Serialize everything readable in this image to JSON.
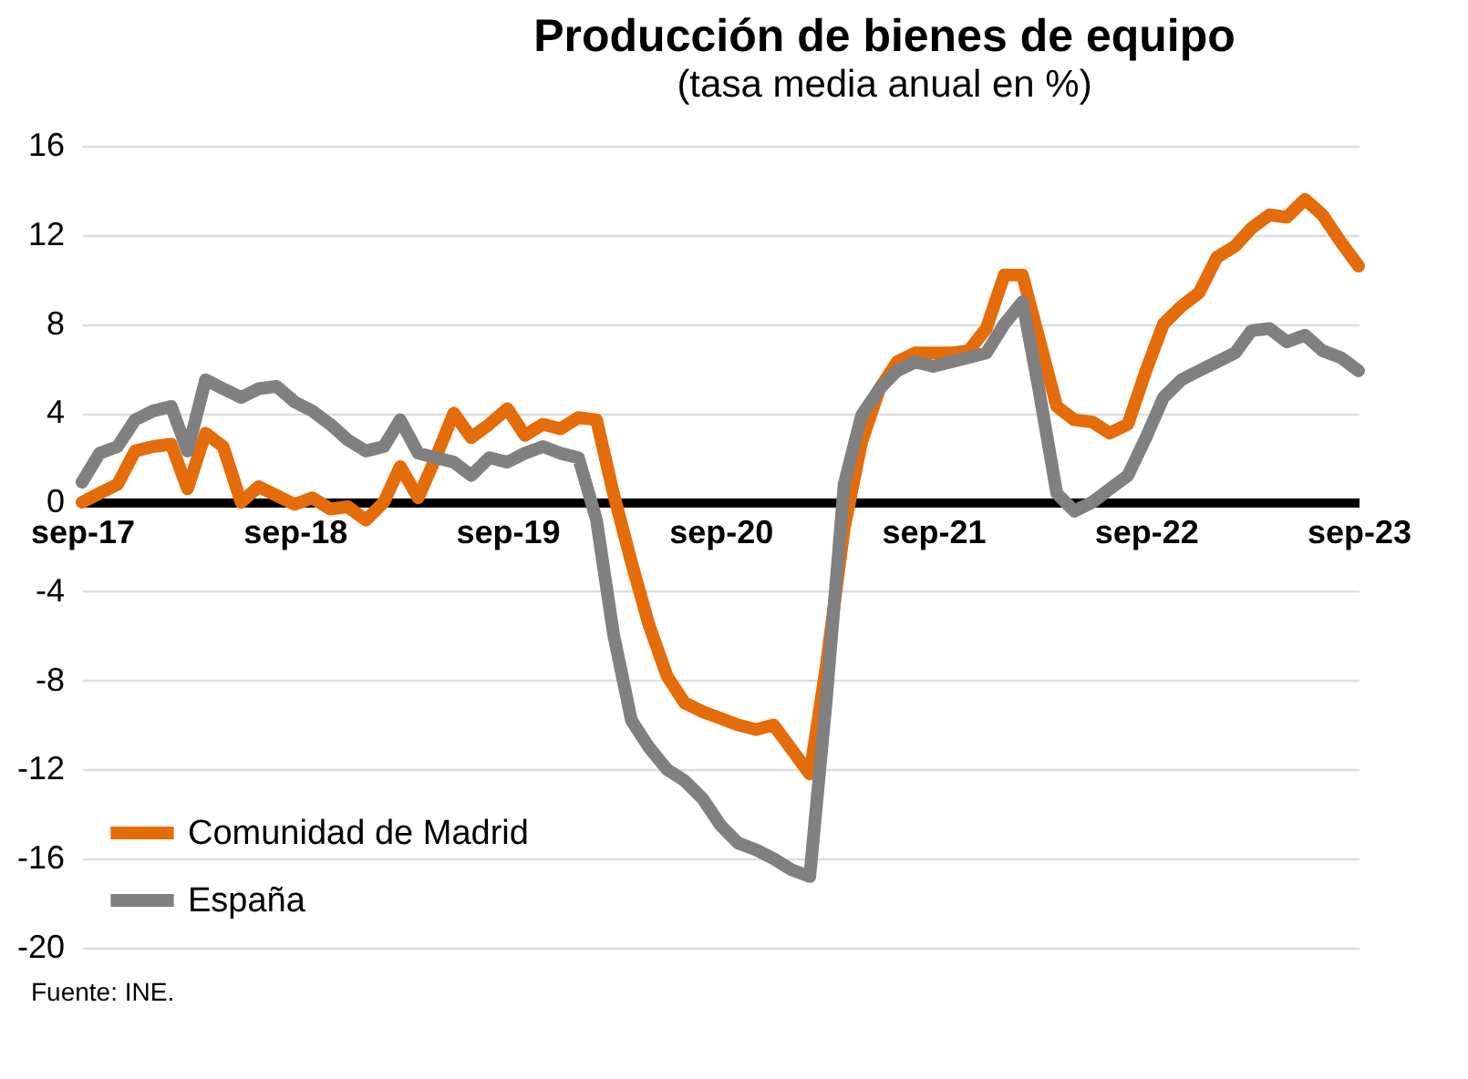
{
  "chart_data": {
    "type": "line",
    "title": "Producción de bienes de equipo",
    "subtitle": "(tasa media anual en %)",
    "x": [
      "2017-09",
      "2017-10",
      "2017-11",
      "2017-12",
      "2018-01",
      "2018-02",
      "2018-03",
      "2018-04",
      "2018-05",
      "2018-06",
      "2018-07",
      "2018-08",
      "2018-09",
      "2018-10",
      "2018-11",
      "2018-12",
      "2019-01",
      "2019-02",
      "2019-03",
      "2019-04",
      "2019-05",
      "2019-06",
      "2019-07",
      "2019-08",
      "2019-09",
      "2019-10",
      "2019-11",
      "2019-12",
      "2020-01",
      "2020-02",
      "2020-03",
      "2020-04",
      "2020-05",
      "2020-06",
      "2020-07",
      "2020-08",
      "2020-09",
      "2020-10",
      "2020-11",
      "2020-12",
      "2021-01",
      "2021-02",
      "2021-03",
      "2021-04",
      "2021-05",
      "2021-06",
      "2021-07",
      "2021-08",
      "2021-09",
      "2021-10",
      "2021-11",
      "2021-12",
      "2022-01",
      "2022-02",
      "2022-03",
      "2022-04",
      "2022-05",
      "2022-06",
      "2022-07",
      "2022-08",
      "2022-09",
      "2022-10",
      "2022-11",
      "2022-12",
      "2023-01",
      "2023-02",
      "2023-03",
      "2023-04",
      "2023-05",
      "2023-06",
      "2023-07",
      "2023-08",
      "2023-09"
    ],
    "series": [
      {
        "name": "Comunidad de Madrid",
        "color": "#e46c0a",
        "values": [
          0.0,
          0.4,
          0.8,
          2.3,
          2.5,
          2.6,
          0.6,
          3.1,
          2.5,
          0.0,
          0.7,
          0.3,
          -0.1,
          0.2,
          -0.3,
          -0.2,
          -0.8,
          0.0,
          1.6,
          0.2,
          2.0,
          4.0,
          2.9,
          3.5,
          4.2,
          3.0,
          3.5,
          3.3,
          3.8,
          3.7,
          0.4,
          -2.7,
          -5.5,
          -7.8,
          -9.0,
          -9.4,
          -9.7,
          -10.0,
          -10.2,
          -10.0,
          -11.1,
          -12.2,
          -7.4,
          -1.2,
          2.7,
          5.1,
          6.3,
          6.7,
          6.7,
          6.7,
          6.8,
          7.8,
          10.2,
          10.2,
          7.4,
          4.3,
          3.7,
          3.6,
          3.1,
          3.5,
          5.9,
          8.0,
          8.8,
          9.4,
          11.0,
          11.5,
          12.3,
          12.9,
          12.8,
          13.6,
          12.9,
          11.7,
          10.6
        ]
      },
      {
        "name": "España",
        "color": "#808080",
        "values": [
          0.9,
          2.2,
          2.5,
          3.7,
          4.1,
          4.3,
          2.3,
          5.5,
          5.1,
          4.7,
          5.1,
          5.2,
          4.5,
          4.1,
          3.5,
          2.8,
          2.3,
          2.5,
          3.7,
          2.2,
          2.0,
          1.8,
          1.2,
          2.0,
          1.8,
          2.2,
          2.5,
          2.2,
          2.0,
          -0.8,
          -5.9,
          -9.8,
          -11.0,
          -12.0,
          -12.5,
          -13.3,
          -14.5,
          -15.3,
          -15.6,
          -16.0,
          -16.5,
          -16.8,
          -9.0,
          0.8,
          3.9,
          5.1,
          5.9,
          6.3,
          6.1,
          6.3,
          6.5,
          6.7,
          8.0,
          9.0,
          5.1,
          0.4,
          -0.4,
          0.0,
          0.6,
          1.2,
          2.9,
          4.7,
          5.5,
          5.9,
          6.3,
          6.7,
          7.7,
          7.8,
          7.2,
          7.5,
          6.8,
          6.5,
          5.9
        ]
      }
    ],
    "xlim": [
      "2017-09",
      "2023-09"
    ],
    "xticks": [
      {
        "value": "2017-09",
        "label": "sep-17"
      },
      {
        "value": "2018-09",
        "label": "sep-18"
      },
      {
        "value": "2019-09",
        "label": "sep-19"
      },
      {
        "value": "2020-09",
        "label": "sep-20"
      },
      {
        "value": "2021-09",
        "label": "sep-21"
      },
      {
        "value": "2022-09",
        "label": "sep-22"
      },
      {
        "value": "2023-09",
        "label": "sep-23"
      }
    ],
    "ylim": [
      -20,
      16
    ],
    "yticks": [
      -20,
      -16,
      -12,
      -8,
      -4,
      0,
      4,
      8,
      12,
      16
    ],
    "grid": "y",
    "legend": "bottom left",
    "line_style": "solid",
    "marker": "none",
    "annotations": [
      "Fuente: INE."
    ]
  }
}
